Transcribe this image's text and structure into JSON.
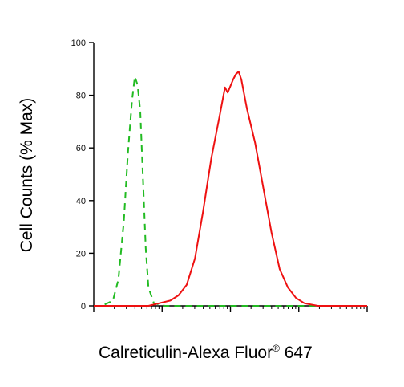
{
  "chart_data": {
    "type": "line",
    "xlabel": "Calreticulin-Alexa Fluor",
    "xlabel_superscript": "®",
    "xlabel_suffix": " 647",
    "ylabel": "Cell Counts (% Max)",
    "ylim": [
      0,
      100
    ],
    "yticks": [
      0,
      20,
      40,
      60,
      80,
      100
    ],
    "xscale": "log",
    "grid": false,
    "legend": "none",
    "series": [
      {
        "color": "#22bb22",
        "style": "dashed",
        "points": [
          [
            0.0,
            0
          ],
          [
            0.03,
            0
          ],
          [
            0.07,
            2
          ],
          [
            0.09,
            10
          ],
          [
            0.11,
            32
          ],
          [
            0.125,
            58
          ],
          [
            0.14,
            78
          ],
          [
            0.15,
            87
          ],
          [
            0.16,
            84
          ],
          [
            0.17,
            74
          ],
          [
            0.18,
            48
          ],
          [
            0.19,
            22
          ],
          [
            0.2,
            7
          ],
          [
            0.22,
            1
          ],
          [
            0.26,
            0
          ],
          [
            1.0,
            0
          ]
        ]
      },
      {
        "color": "#ee1111",
        "style": "solid",
        "points": [
          [
            0.0,
            0
          ],
          [
            0.2,
            0
          ],
          [
            0.24,
            1
          ],
          [
            0.28,
            2
          ],
          [
            0.31,
            4
          ],
          [
            0.34,
            8
          ],
          [
            0.37,
            18
          ],
          [
            0.4,
            36
          ],
          [
            0.43,
            56
          ],
          [
            0.46,
            72
          ],
          [
            0.48,
            83
          ],
          [
            0.49,
            81
          ],
          [
            0.51,
            86
          ],
          [
            0.52,
            88
          ],
          [
            0.53,
            89
          ],
          [
            0.54,
            86
          ],
          [
            0.56,
            75
          ],
          [
            0.59,
            62
          ],
          [
            0.62,
            45
          ],
          [
            0.65,
            28
          ],
          [
            0.68,
            14
          ],
          [
            0.71,
            7
          ],
          [
            0.74,
            3
          ],
          [
            0.77,
            1
          ],
          [
            0.82,
            0
          ],
          [
            1.0,
            0
          ]
        ]
      }
    ]
  }
}
